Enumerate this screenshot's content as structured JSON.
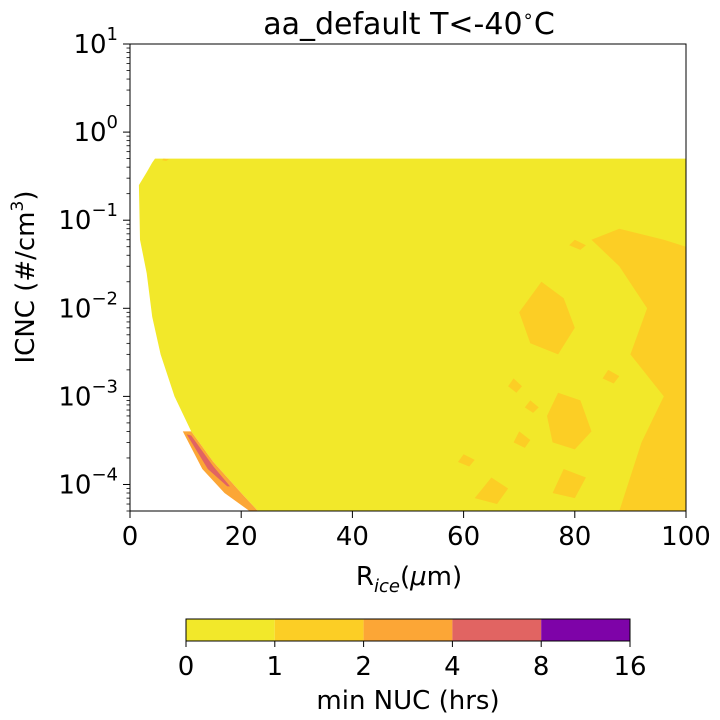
{
  "chart_data": {
    "type": "heatmap",
    "title": "aa_default T<-40$^\\circ$C",
    "title_parts": {
      "main": "aa_default T<-40",
      "deg": "∘",
      "unit": "C"
    },
    "xlabel_parts": {
      "base": "R",
      "sub": "ice",
      "rest": "(",
      "mu": "μ",
      "unit": "m)"
    },
    "ylabel_parts": {
      "main": "ICNC (#/cm",
      "sup": "3",
      "close": ")"
    },
    "x_axis": {
      "range": [
        0,
        100
      ],
      "ticks": [
        0,
        20,
        40,
        60,
        80,
        100
      ],
      "tick_labels": [
        "0",
        "20",
        "40",
        "60",
        "80",
        "100"
      ]
    },
    "y_axis": {
      "scale": "log",
      "range": [
        5e-05,
        10
      ],
      "ticks": [
        0.0001,
        0.001,
        0.01,
        0.1,
        1,
        10
      ],
      "tick_labels": [
        {
          "base": "10",
          "exp": "−4"
        },
        {
          "base": "10",
          "exp": "−3"
        },
        {
          "base": "10",
          "exp": "−2"
        },
        {
          "base": "10",
          "exp": "−1"
        },
        {
          "base": "10",
          "exp": "0"
        },
        {
          "base": "10",
          "exp": "1"
        }
      ]
    },
    "colorbar": {
      "label": "min NUC (hrs)",
      "levels": [
        0,
        1,
        2,
        4,
        8,
        16
      ],
      "tick_labels": [
        "0",
        "1",
        "2",
        "4",
        "8",
        "16"
      ],
      "colors": [
        "#f2e82a",
        "#fcce25",
        "#fca636",
        "#e16462",
        "#7e03a8"
      ]
    },
    "regions": [
      {
        "level_bin": "0-1",
        "color": "#f2e82a",
        "boundary": [
          [
            4.5,
            0.5
          ],
          [
            100,
            0.5
          ],
          [
            100,
            5e-05
          ],
          [
            23,
            5e-05
          ],
          [
            20,
            8e-05
          ],
          [
            15,
            0.00018
          ],
          [
            11,
            0.0004
          ],
          [
            8,
            0.001
          ],
          [
            5.5,
            0.003
          ],
          [
            4,
            0.008
          ],
          [
            3,
            0.025
          ],
          [
            1.8,
            0.06
          ],
          [
            1.6,
            0.25
          ],
          [
            3,
            0.35
          ],
          [
            4,
            0.45
          ]
        ]
      },
      {
        "level_bin": "1-2",
        "color": "#fcce25",
        "boundary": [
          [
            83,
            0.06
          ],
          [
            88,
            0.08
          ],
          [
            96,
            0.06
          ],
          [
            100,
            0.05
          ],
          [
            100,
            5e-05
          ],
          [
            88,
            5e-05
          ],
          [
            92,
            0.0003
          ],
          [
            96,
            0.001
          ],
          [
            90,
            0.003
          ],
          [
            93,
            0.01
          ],
          [
            88,
            0.03
          ]
        ]
      },
      {
        "level_bin": "1-2",
        "color": "#fcce25",
        "boundary": [
          [
            74,
            0.02
          ],
          [
            78,
            0.013
          ],
          [
            80,
            0.006
          ],
          [
            77,
            0.003
          ],
          [
            72,
            0.004
          ],
          [
            70,
            0.009
          ]
        ]
      },
      {
        "level_bin": "1-2",
        "color": "#fcce25",
        "boundary": [
          [
            77,
            0.0011
          ],
          [
            81,
            0.0009
          ],
          [
            83,
            0.0004
          ],
          [
            80,
            0.00025
          ],
          [
            76,
            0.0003
          ],
          [
            75,
            0.0006
          ]
        ]
      },
      {
        "level_bin": "1-2",
        "color": "#fcce25",
        "boundary": [
          [
            65,
            0.00012
          ],
          [
            68,
            9e-05
          ],
          [
            66,
            6e-05
          ],
          [
            62,
            7e-05
          ]
        ]
      },
      {
        "level_bin": "1-2",
        "color": "#fcce25",
        "boundary": [
          [
            78,
            0.00015
          ],
          [
            82,
            0.00012
          ],
          [
            80,
            7e-05
          ],
          [
            76,
            8e-05
          ]
        ]
      },
      {
        "level_bin": "1-2",
        "color": "#fcce25",
        "boundary": [
          [
            70,
            0.0004
          ],
          [
            72,
            0.00032
          ],
          [
            71,
            0.00026
          ],
          [
            69,
            0.0003
          ]
        ]
      },
      {
        "level_bin": "1-2",
        "color": "#fcce25",
        "boundary": [
          [
            95,
            0.0002
          ],
          [
            98,
            0.00016
          ],
          [
            97,
            0.00011
          ],
          [
            94,
            0.00013
          ]
        ]
      },
      {
        "level_bin": "1-2",
        "color": "#fcce25",
        "boundary": [
          [
            60,
            0.00022
          ],
          [
            62,
            0.00019
          ],
          [
            61,
            0.00016
          ],
          [
            59,
            0.00018
          ]
        ]
      },
      {
        "level_bin": "1-2",
        "color": "#fcce25",
        "boundary": [
          [
            72,
            0.0009
          ],
          [
            73.5,
            0.00075
          ],
          [
            72.5,
            0.00065
          ],
          [
            71,
            0.00075
          ]
        ]
      },
      {
        "level_bin": "1-2",
        "color": "#fcce25",
        "boundary": [
          [
            69,
            0.0016
          ],
          [
            70.5,
            0.0013
          ],
          [
            69.5,
            0.0011
          ],
          [
            68,
            0.0013
          ]
        ]
      },
      {
        "level_bin": "1-2",
        "color": "#fcce25",
        "boundary": [
          [
            86,
            0.002
          ],
          [
            88,
            0.0017
          ],
          [
            87,
            0.0014
          ],
          [
            85,
            0.0016
          ]
        ]
      },
      {
        "level_bin": "1-2",
        "color": "#fcce25",
        "boundary": [
          [
            80,
            0.06
          ],
          [
            82,
            0.052
          ],
          [
            81,
            0.046
          ],
          [
            79,
            0.052
          ]
        ]
      },
      {
        "level_bin": "1-2",
        "color": "#fcce25",
        "boundary": [
          [
            6,
            0.5
          ],
          [
            7,
            0.49
          ],
          [
            6.5,
            0.47
          ],
          [
            5.8,
            0.48
          ]
        ]
      },
      {
        "level_bin": "2-4",
        "color": "#fca636",
        "boundary": [
          [
            9.5,
            0.0004
          ],
          [
            11,
            0.0004
          ],
          [
            15,
            0.00018
          ],
          [
            20,
            8e-05
          ],
          [
            23,
            5e-05
          ],
          [
            21.5,
            5e-05
          ],
          [
            17,
            8e-05
          ],
          [
            13,
            0.00015
          ]
        ]
      },
      {
        "level_bin": "8-16",
        "color": "#e16462",
        "boundary": [
          [
            10.2,
            0.00037
          ],
          [
            11,
            0.00036
          ],
          [
            15,
            0.00016
          ],
          [
            18,
            9.5e-05
          ],
          [
            17.5,
            9.5e-05
          ],
          [
            14,
            0.00015
          ]
        ]
      }
    ]
  }
}
